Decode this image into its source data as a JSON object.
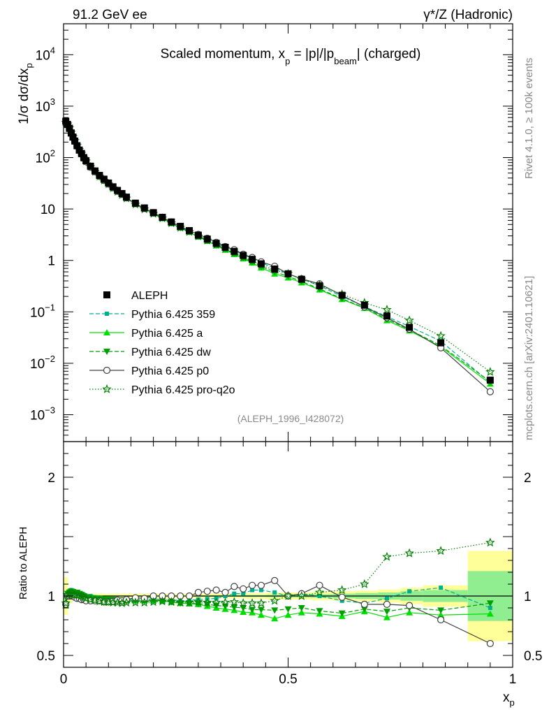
{
  "header": {
    "left": "91.2 GeV ee",
    "right": "γ*/Z (Hadronic)"
  },
  "side_labels": {
    "top": "Rivet 4.1.0, ≥ 100k events",
    "bottom": "mcplots.cern.ch [arXiv:2401.10621]"
  },
  "colors": {
    "data": "#000000",
    "p359": "#00b08c",
    "a": "#00e000",
    "dw": "#00a000",
    "p0": "#404040",
    "q2o": "#008000",
    "band_yellow": "#ffff99",
    "band_green": "#90ee90"
  },
  "chart_data": [
    {
      "type": "line",
      "panel": "main",
      "title": "Scaled momentum, x_p = |p|/|p_beam| (charged)",
      "title_parts": {
        "pre": "Scaled momentum, x",
        "sub1": "p",
        "mid": " = |p|/|p",
        "sub2": "beam",
        "post": "| (charged)"
      },
      "ylabel": "1/σ  dσ/dx_p",
      "ylabel_parts": {
        "pre": "1/σ  dσ/dx",
        "sub": "p"
      },
      "yscale": "log",
      "xlim": [
        0,
        1
      ],
      "ylim": [
        0.0003,
        40000
      ],
      "ytick_labels": [
        "10⁻³",
        "10⁻²",
        "10⁻¹",
        "1",
        "10",
        "10²",
        "10³",
        "10⁴"
      ],
      "ytick_values": [
        0.001,
        0.01,
        0.1,
        1,
        10,
        100,
        1000,
        10000
      ],
      "ytick_parts": [
        {
          "base": "10",
          "exp": "−3"
        },
        {
          "base": "10",
          "exp": "−2"
        },
        {
          "base": "10",
          "exp": "−1"
        },
        {
          "base": "1",
          "exp": ""
        },
        {
          "base": "10",
          "exp": ""
        },
        {
          "base": "10",
          "exp": "2"
        },
        {
          "base": "10",
          "exp": "3"
        },
        {
          "base": "10",
          "exp": "4"
        }
      ],
      "x": [
        0.005,
        0.009,
        0.013,
        0.017,
        0.021,
        0.025,
        0.03,
        0.035,
        0.04,
        0.045,
        0.05,
        0.06,
        0.07,
        0.08,
        0.09,
        0.1,
        0.11,
        0.12,
        0.13,
        0.14,
        0.16,
        0.18,
        0.2,
        0.22,
        0.24,
        0.26,
        0.28,
        0.3,
        0.32,
        0.34,
        0.36,
        0.38,
        0.4,
        0.42,
        0.44,
        0.47,
        0.5,
        0.53,
        0.57,
        0.62,
        0.67,
        0.72,
        0.77,
        0.84,
        0.95
      ],
      "series": [
        {
          "name": "ALEPH",
          "key": "data",
          "marker": "square",
          "values": [
            510,
            440,
            370,
            300,
            250,
            210,
            170,
            140,
            120,
            100,
            87,
            68,
            55,
            45,
            38,
            32,
            27,
            23,
            20,
            17,
            13,
            10.5,
            8.5,
            6.9,
            5.6,
            4.6,
            3.8,
            3.1,
            2.6,
            2.15,
            1.8,
            1.5,
            1.25,
            1.05,
            0.86,
            0.68,
            0.55,
            0.43,
            0.32,
            0.21,
            0.135,
            0.083,
            0.05,
            0.025,
            0.0047
          ]
        },
        {
          "name": "Pythia 6.425 359",
          "key": "p359",
          "marker": "square-small",
          "dash": "6,3",
          "values": [
            480,
            450,
            385,
            315,
            260,
            216,
            175,
            143,
            122,
            101,
            87,
            68,
            54,
            44,
            37,
            31.2,
            26.2,
            22.3,
            19.4,
            16.5,
            12.6,
            10.2,
            8.3,
            6.7,
            5.4,
            4.4,
            3.66,
            3.0,
            2.53,
            2.1,
            1.8,
            1.53,
            1.28,
            1.1,
            0.9,
            0.7,
            0.55,
            0.44,
            0.32,
            0.2,
            0.127,
            0.081,
            0.052,
            0.027,
            0.0042
          ]
        },
        {
          "name": "Pythia 6.425 a",
          "key": "a",
          "marker": "triangle-up",
          "dash": "",
          "values": [
            470,
            445,
            380,
            310,
            258,
            214,
            174,
            142,
            121,
            100,
            86,
            67,
            54,
            44,
            37,
            31,
            26.1,
            22.2,
            19.2,
            16.4,
            12.5,
            10.1,
            8.2,
            6.6,
            5.3,
            4.3,
            3.55,
            2.88,
            2.38,
            1.94,
            1.6,
            1.32,
            1.08,
            0.9,
            0.72,
            0.55,
            0.46,
            0.37,
            0.27,
            0.175,
            0.118,
            0.068,
            0.043,
            0.021,
            0.004
          ]
        },
        {
          "name": "Pythia 6.425 dw",
          "key": "dw",
          "marker": "triangle-down",
          "dash": "6,3",
          "values": [
            475,
            447,
            382,
            312,
            259,
            215,
            175,
            143,
            121,
            100,
            86,
            67,
            54,
            44,
            37,
            31,
            26.1,
            22.2,
            19.2,
            16.4,
            12.5,
            10.1,
            8.2,
            6.6,
            5.3,
            4.3,
            3.57,
            2.9,
            2.42,
            1.98,
            1.65,
            1.36,
            1.12,
            0.93,
            0.76,
            0.6,
            0.49,
            0.39,
            0.28,
            0.18,
            0.12,
            0.072,
            0.045,
            0.022,
            0.0044
          ]
        },
        {
          "name": "Pythia 6.425 p0",
          "key": "p0",
          "marker": "circle-open",
          "dash": "",
          "values": [
            475,
            440,
            370,
            300,
            250,
            208,
            166,
            137,
            116,
            97,
            83,
            65,
            53,
            43,
            36,
            30.5,
            25.8,
            22.2,
            19.2,
            16.5,
            12.8,
            10.3,
            8.5,
            6.9,
            5.6,
            4.6,
            3.8,
            3.2,
            2.7,
            2.25,
            1.86,
            1.62,
            1.32,
            1.14,
            0.94,
            0.77,
            0.55,
            0.44,
            0.35,
            0.21,
            0.125,
            0.077,
            0.046,
            0.02,
            0.0028
          ]
        },
        {
          "name": "Pythia 6.425 pro-q2o",
          "key": "q2o",
          "marker": "star-open",
          "dash": "1.5,2.5",
          "values": [
            480,
            445,
            378,
            308,
            256,
            212,
            172,
            141,
            120,
            99,
            85,
            66,
            53,
            43,
            36,
            30.4,
            25.5,
            21.7,
            18.8,
            16.1,
            12.3,
            9.9,
            8.1,
            6.6,
            5.3,
            4.35,
            3.6,
            2.95,
            2.45,
            2.03,
            1.7,
            1.42,
            1.17,
            0.99,
            0.81,
            0.65,
            0.55,
            0.43,
            0.33,
            0.22,
            0.15,
            0.11,
            0.068,
            0.034,
            0.0068
          ]
        }
      ],
      "legend_position": "lower-left",
      "annotation": "(ALEPH_1996_I428072)"
    },
    {
      "type": "line",
      "panel": "ratio",
      "ylabel": "Ratio to ALEPH",
      "xlabel": "x_p",
      "xlabel_parts": {
        "pre": "x",
        "sub": "p"
      },
      "xlim": [
        0,
        1
      ],
      "ylim": [
        0.4,
        2.3
      ],
      "ytick_labels": [
        "0.5",
        "1",
        "2"
      ],
      "ytick_values": [
        0.5,
        1,
        2
      ],
      "xtick_labels": [
        "0",
        "0.5",
        "1"
      ],
      "xtick_values": [
        0,
        0.5,
        1
      ],
      "bands": {
        "x_edges": [
          0,
          0.01,
          0.02,
          0.04,
          0.1,
          0.2,
          0.3,
          0.4,
          0.45,
          0.5,
          0.55,
          0.6,
          0.65,
          0.7,
          0.75,
          0.8,
          0.9,
          1.0
        ],
        "yellow_half": [
          0.16,
          0.06,
          0.03,
          0.02,
          0.02,
          0.02,
          0.02,
          0.025,
          0.03,
          0.03,
          0.035,
          0.04,
          0.045,
          0.055,
          0.07,
          0.09,
          0.38
        ],
        "green_half": [
          0.03,
          0.01,
          0.005,
          0.005,
          0.005,
          0.005,
          0.006,
          0.008,
          0.01,
          0.012,
          0.015,
          0.02,
          0.025,
          0.03,
          0.04,
          0.05,
          0.21
        ]
      },
      "ratios": {
        "x": [
          0.005,
          0.009,
          0.013,
          0.017,
          0.021,
          0.025,
          0.03,
          0.035,
          0.04,
          0.045,
          0.05,
          0.06,
          0.07,
          0.08,
          0.09,
          0.1,
          0.11,
          0.12,
          0.13,
          0.14,
          0.16,
          0.18,
          0.2,
          0.22,
          0.24,
          0.26,
          0.28,
          0.3,
          0.32,
          0.34,
          0.36,
          0.38,
          0.4,
          0.42,
          0.44,
          0.47,
          0.5,
          0.53,
          0.57,
          0.62,
          0.67,
          0.72,
          0.77,
          0.84,
          0.95
        ],
        "p359": [
          0.94,
          1.02,
          1.04,
          1.05,
          1.04,
          1.03,
          1.03,
          1.02,
          1.02,
          1.01,
          1.0,
          1.0,
          0.99,
          0.98,
          0.97,
          0.975,
          0.97,
          0.97,
          0.97,
          0.97,
          0.97,
          0.97,
          0.975,
          0.97,
          0.97,
          0.96,
          0.965,
          0.97,
          0.975,
          0.98,
          1.0,
          1.02,
          1.02,
          1.05,
          1.05,
          1.03,
          1.0,
          1.02,
          1.0,
          0.96,
          0.94,
          0.98,
          1.04,
          1.07,
          0.9
        ],
        "a": [
          0.92,
          1.01,
          1.03,
          1.03,
          1.03,
          1.02,
          1.02,
          1.02,
          1.01,
          1.0,
          0.99,
          0.98,
          0.98,
          0.98,
          0.97,
          0.97,
          0.97,
          0.97,
          0.96,
          0.96,
          0.96,
          0.96,
          0.96,
          0.96,
          0.95,
          0.94,
          0.935,
          0.93,
          0.915,
          0.9,
          0.89,
          0.88,
          0.865,
          0.86,
          0.84,
          0.81,
          0.84,
          0.86,
          0.85,
          0.83,
          0.87,
          0.82,
          0.86,
          0.84,
          0.85
        ],
        "dw": [
          0.93,
          1.02,
          1.03,
          1.04,
          1.035,
          1.025,
          1.03,
          1.02,
          1.01,
          1.0,
          0.99,
          0.985,
          0.98,
          0.98,
          0.975,
          0.97,
          0.97,
          0.965,
          0.96,
          0.96,
          0.96,
          0.96,
          0.965,
          0.96,
          0.95,
          0.94,
          0.94,
          0.935,
          0.93,
          0.92,
          0.915,
          0.905,
          0.9,
          0.885,
          0.885,
          0.88,
          0.89,
          0.9,
          0.875,
          0.855,
          0.89,
          0.87,
          0.9,
          0.88,
          0.94
        ],
        "p0": [
          0.93,
          1.0,
          1.0,
          1.0,
          1.0,
          0.99,
          0.98,
          0.98,
          0.97,
          0.97,
          0.96,
          0.96,
          0.96,
          0.96,
          0.95,
          0.95,
          0.955,
          0.965,
          0.96,
          0.97,
          0.985,
          0.98,
          1.0,
          1.0,
          1.0,
          1.0,
          1.0,
          1.03,
          1.04,
          1.05,
          1.03,
          1.08,
          1.06,
          1.09,
          1.09,
          1.13,
          1.0,
          1.02,
          1.09,
          0.99,
          0.93,
          0.93,
          0.92,
          0.8,
          0.6
        ],
        "q2o": [
          0.94,
          1.01,
          1.02,
          1.03,
          1.02,
          1.01,
          1.01,
          1.01,
          1.0,
          0.99,
          0.98,
          0.97,
          0.965,
          0.955,
          0.95,
          0.95,
          0.945,
          0.945,
          0.94,
          0.945,
          0.945,
          0.945,
          0.95,
          0.955,
          0.95,
          0.945,
          0.945,
          0.95,
          0.945,
          0.945,
          0.945,
          0.95,
          0.94,
          0.94,
          0.94,
          0.96,
          1.0,
          1.0,
          1.03,
          1.05,
          1.1,
          1.33,
          1.36,
          1.38,
          1.45
        ]
      }
    }
  ]
}
